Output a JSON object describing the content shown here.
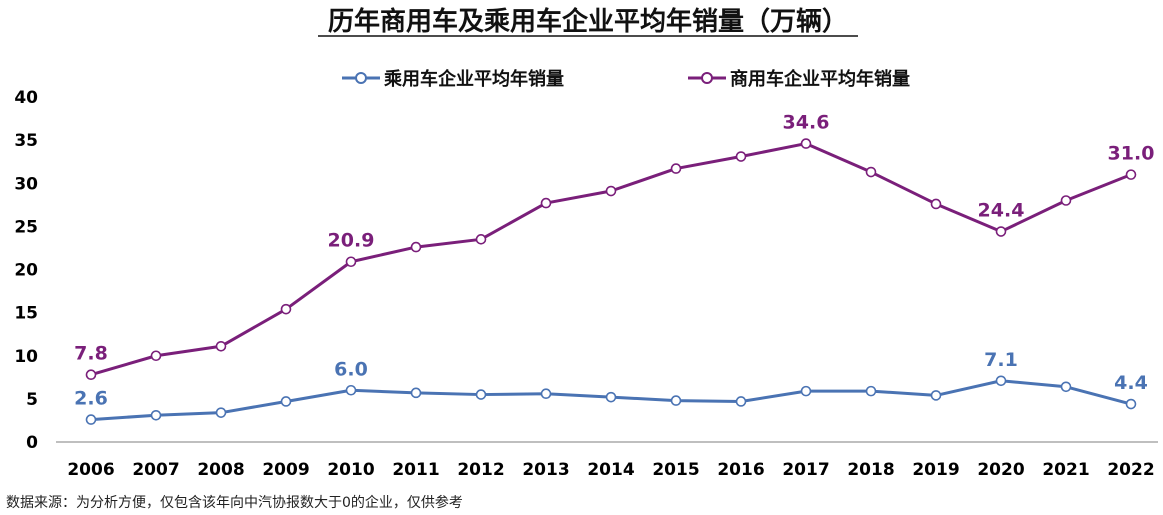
{
  "colors": {
    "passenger": "#4a73b3",
    "commercial": "#7a1f7a",
    "axis": "#999999",
    "text": "#111111"
  },
  "source_note": "数据来源：为分析方便，仅包含该年向中汽协报数大于0的企业，仅供参考",
  "chart_data": {
    "type": "line",
    "title": "历年商用车及乘用车企业平均年销量（万辆）",
    "xlabel": "",
    "ylabel": "",
    "ylim": [
      0,
      40
    ],
    "yticks": [
      0,
      5,
      10,
      15,
      20,
      25,
      30,
      35,
      40
    ],
    "grid": false,
    "legend_position": "top-center",
    "x": [
      "2006",
      "2007",
      "2008",
      "2009",
      "2010",
      "2011",
      "2012",
      "2013",
      "2014",
      "2015",
      "2016",
      "2017",
      "2018",
      "2019",
      "2020",
      "2021",
      "2022"
    ],
    "series": [
      {
        "name": "乘用车企业平均年销量",
        "color": "#4a73b3",
        "values": [
          2.6,
          3.1,
          3.4,
          4.7,
          6.0,
          5.7,
          5.5,
          5.6,
          5.2,
          4.8,
          4.7,
          5.9,
          5.9,
          5.4,
          7.1,
          6.4,
          4.4
        ],
        "data_labels": [
          {
            "x": "2006",
            "text": "2.6"
          },
          {
            "x": "2010",
            "text": "6.0"
          },
          {
            "x": "2020",
            "text": "7.1"
          },
          {
            "x": "2022",
            "text": "4.4"
          }
        ]
      },
      {
        "name": "商用车企业平均年销量",
        "color": "#7a1f7a",
        "values": [
          7.8,
          10.0,
          11.1,
          15.4,
          20.9,
          22.6,
          23.5,
          27.7,
          29.1,
          31.7,
          33.1,
          34.6,
          31.3,
          27.6,
          24.4,
          28.0,
          31.0
        ],
        "data_labels": [
          {
            "x": "2006",
            "text": "7.8"
          },
          {
            "x": "2010",
            "text": "20.9"
          },
          {
            "x": "2017",
            "text": "34.6"
          },
          {
            "x": "2020",
            "text": "24.4"
          },
          {
            "x": "2022",
            "text": "31.0"
          }
        ]
      }
    ]
  }
}
